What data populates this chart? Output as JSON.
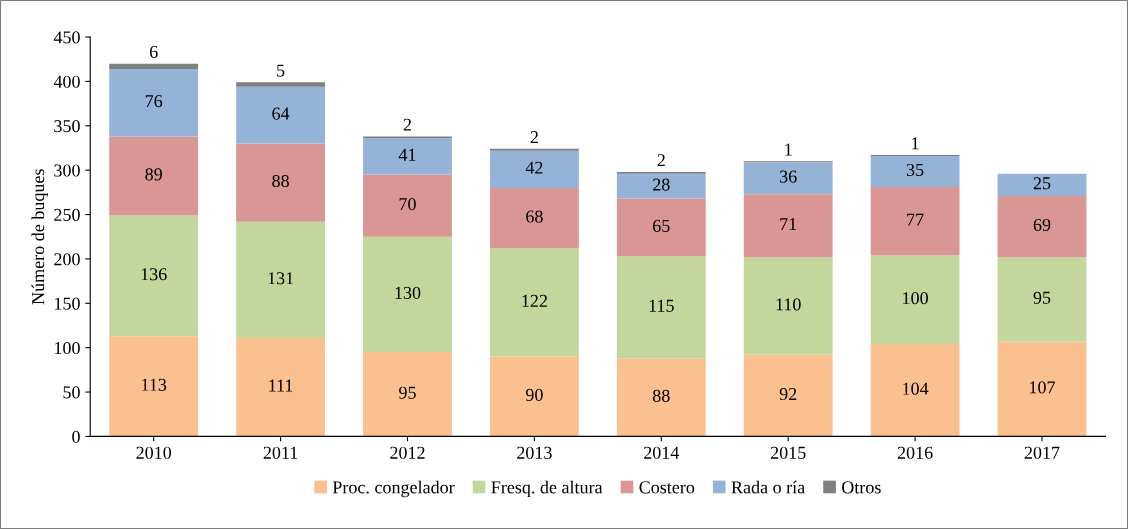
{
  "chart_data": {
    "type": "bar",
    "stacked": true,
    "ylabel": "Número de buques",
    "categories": [
      "2010",
      "2011",
      "2012",
      "2013",
      "2014",
      "2015",
      "2016",
      "2017"
    ],
    "series": [
      {
        "name": "Proc. congelador",
        "color": "#fac090",
        "values": [
          113,
          111,
          95,
          90,
          88,
          92,
          104,
          107
        ]
      },
      {
        "name": "Fresq. de altura",
        "color": "#c3d69b",
        "values": [
          136,
          131,
          130,
          122,
          115,
          110,
          100,
          95
        ]
      },
      {
        "name": "Costero",
        "color": "#d99694",
        "values": [
          89,
          88,
          70,
          68,
          65,
          71,
          77,
          69
        ]
      },
      {
        "name": "Rada o ría",
        "color": "#95b3d7",
        "values": [
          76,
          64,
          41,
          42,
          28,
          36,
          35,
          25
        ]
      },
      {
        "name": "Otros",
        "color": "#7f7f7f",
        "values": [
          6,
          5,
          2,
          2,
          2,
          1,
          1,
          null
        ]
      }
    ],
    "ylim": [
      0,
      450
    ],
    "yticks": [
      0,
      50,
      100,
      150,
      200,
      250,
      300,
      350,
      400,
      450
    ],
    "data_labels": true,
    "legend": "bottom",
    "grid": false
  }
}
